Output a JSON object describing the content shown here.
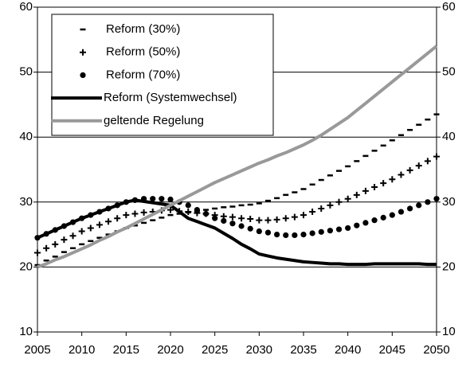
{
  "chart_data": {
    "type": "line",
    "x": [
      2005,
      2006,
      2007,
      2008,
      2009,
      2010,
      2011,
      2012,
      2013,
      2014,
      2015,
      2016,
      2017,
      2018,
      2019,
      2020,
      2021,
      2022,
      2023,
      2024,
      2025,
      2026,
      2027,
      2028,
      2029,
      2030,
      2031,
      2032,
      2033,
      2034,
      2035,
      2036,
      2037,
      2038,
      2039,
      2040,
      2041,
      2042,
      2043,
      2044,
      2045,
      2046,
      2047,
      2048,
      2049,
      2050
    ],
    "xlim": [
      2005,
      2050
    ],
    "xticks": [
      2005,
      2010,
      2015,
      2020,
      2025,
      2030,
      2035,
      2040,
      2045,
      2050
    ],
    "ylim": [
      10,
      60
    ],
    "yticks": [
      10,
      20,
      30,
      40,
      50,
      60
    ],
    "y2lim": [
      10,
      60
    ],
    "y2ticks": [
      10,
      20,
      30,
      40,
      50,
      60
    ],
    "grid": true,
    "legend": "top-left",
    "series": [
      {
        "name": "Reform (30%)",
        "color": "#000000",
        "marker": "dash",
        "values": [
          20.3,
          21.0,
          21.6,
          22.3,
          22.9,
          23.5,
          24.0,
          24.5,
          25.0,
          25.5,
          26.0,
          26.4,
          26.8,
          27.2,
          27.6,
          28.0,
          28.2,
          28.4,
          28.6,
          28.8,
          29.0,
          29.2,
          29.3,
          29.5,
          29.6,
          29.8,
          30.2,
          30.6,
          31.1,
          31.5,
          32.0,
          32.7,
          33.4,
          34.1,
          34.8,
          35.5,
          36.3,
          37.1,
          37.9,
          38.7,
          39.5,
          40.3,
          41.1,
          41.9,
          42.7,
          43.5
        ]
      },
      {
        "name": "Reform (50%)",
        "color": "#000000",
        "marker": "plus",
        "values": [
          22.2,
          22.9,
          23.5,
          24.2,
          24.8,
          25.5,
          26.0,
          26.5,
          27.0,
          27.5,
          28.0,
          28.2,
          28.4,
          28.5,
          28.7,
          28.8,
          28.6,
          28.5,
          28.3,
          28.2,
          28.0,
          27.8,
          27.7,
          27.5,
          27.4,
          27.2,
          27.2,
          27.3,
          27.5,
          27.7,
          28.0,
          28.5,
          29.0,
          29.5,
          30.0,
          30.5,
          31.1,
          31.7,
          32.3,
          32.9,
          33.5,
          34.2,
          34.9,
          35.6,
          36.3,
          37.0
        ]
      },
      {
        "name": "Reform (70%)",
        "color": "#000000",
        "marker": "dot",
        "values": [
          24.5,
          25.1,
          25.7,
          26.3,
          26.9,
          27.5,
          28.0,
          28.5,
          29.0,
          29.5,
          30.0,
          30.3,
          30.5,
          30.5,
          30.5,
          30.4,
          30.0,
          29.5,
          28.8,
          28.2,
          27.5,
          27.1,
          26.7,
          26.3,
          25.9,
          25.5,
          25.3,
          25.0,
          24.9,
          24.9,
          25.0,
          25.2,
          25.4,
          25.6,
          25.8,
          26.0,
          26.4,
          26.8,
          27.2,
          27.6,
          28.0,
          28.5,
          29.0,
          29.5,
          30.0,
          30.5
        ]
      },
      {
        "name": "Reform (Systemwechsel)",
        "color": "#000000",
        "marker": "line",
        "values": [
          24.5,
          25.1,
          25.7,
          26.3,
          26.9,
          27.5,
          28.0,
          28.5,
          29.0,
          29.5,
          30.0,
          30.3,
          30.1,
          29.9,
          29.7,
          29.5,
          28.5,
          27.5,
          27.0,
          26.5,
          26.0,
          25.2,
          24.4,
          23.5,
          22.8,
          22.0,
          21.7,
          21.4,
          21.2,
          21.0,
          20.8,
          20.7,
          20.6,
          20.5,
          20.5,
          20.4,
          20.4,
          20.4,
          20.5,
          20.5,
          20.5,
          20.5,
          20.5,
          20.5,
          20.4,
          20.4
        ]
      },
      {
        "name": "geltende Regelung",
        "color": "#999999",
        "marker": "line",
        "values": [
          20.0,
          20.5,
          21.1,
          21.6,
          22.2,
          22.8,
          23.4,
          24.1,
          24.7,
          25.4,
          26.0,
          26.7,
          27.4,
          28.1,
          28.8,
          29.5,
          30.2,
          30.9,
          31.6,
          32.3,
          33.0,
          33.6,
          34.2,
          34.8,
          35.4,
          36.0,
          36.5,
          37.1,
          37.6,
          38.2,
          38.8,
          39.5,
          40.3,
          41.2,
          42.1,
          43.0,
          44.1,
          45.2,
          46.3,
          47.4,
          48.5,
          49.6,
          50.7,
          51.8,
          52.9,
          54.0
        ]
      }
    ]
  }
}
